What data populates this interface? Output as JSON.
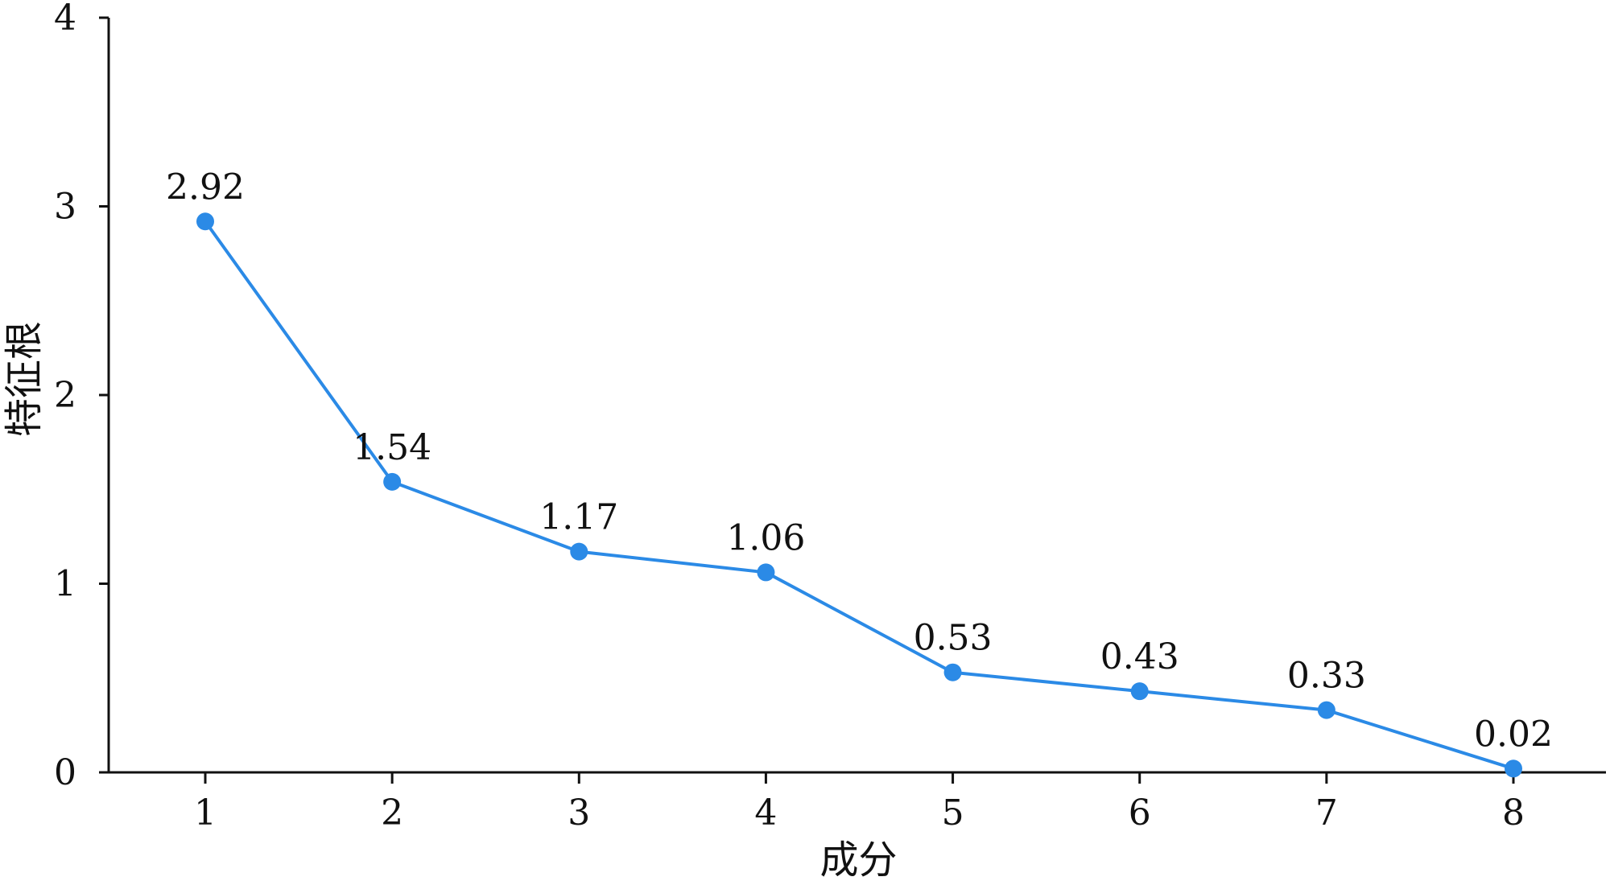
{
  "chart_data": {
    "type": "line",
    "title": "",
    "xlabel": "成分",
    "ylabel": "特征根",
    "x": [
      1,
      2,
      3,
      4,
      5,
      6,
      7,
      8
    ],
    "series": [
      {
        "values": [
          2.92,
          1.54,
          1.17,
          1.06,
          0.53,
          0.43,
          0.33,
          0.02
        ],
        "data_labels": [
          "2.92",
          "1.54",
          "1.17",
          "1.06",
          "0.53",
          "0.43",
          "0.33",
          "0.02"
        ]
      }
    ],
    "x_tick_labels": [
      "1",
      "2",
      "3",
      "4",
      "5",
      "6",
      "7",
      "8"
    ],
    "y_ticks": [
      0,
      1,
      2,
      3,
      4
    ],
    "y_tick_labels": [
      "0",
      "1",
      "2",
      "3",
      "4"
    ],
    "ylim": [
      0,
      4
    ],
    "xlim": [
      0.5,
      8.5
    ],
    "grid": false,
    "legend": "none",
    "colors": {
      "line": "#2b8ae6",
      "marker": "#2b8ae6",
      "axis": "#111111"
    }
  }
}
